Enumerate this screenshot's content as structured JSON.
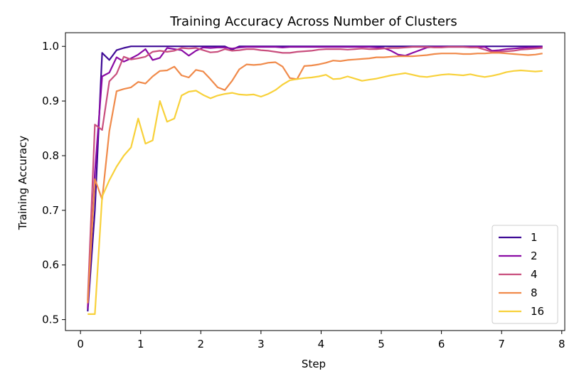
{
  "chart_data": {
    "type": "line",
    "title": "Training Accuracy Across Number of Clusters",
    "xlabel": "Step",
    "ylabel": "Training Accuracy",
    "xlim": [
      -0.25,
      8.05
    ],
    "ylim": [
      0.48,
      1.025
    ],
    "xticks": [
      0,
      1,
      2,
      3,
      4,
      5,
      6,
      7,
      8
    ],
    "xtick_labels": [
      "0",
      "1",
      "2",
      "3",
      "4",
      "5",
      "6",
      "7",
      "8"
    ],
    "yticks": [
      0.5,
      0.6,
      0.7,
      0.8,
      0.9,
      1.0
    ],
    "ytick_labels": [
      "0.5",
      "0.6",
      "0.7",
      "0.8",
      "0.9",
      "1.0"
    ],
    "grid": false,
    "legend_position": "bottom-right",
    "x": [
      0.12,
      0.24,
      0.36,
      0.48,
      0.6,
      0.72,
      0.84,
      0.96,
      1.08,
      1.2,
      1.32,
      1.44,
      1.56,
      1.68,
      1.8,
      1.92,
      2.04,
      2.16,
      2.28,
      2.4,
      2.52,
      2.64,
      2.76,
      2.88,
      3.0,
      3.12,
      3.24,
      3.36,
      3.48,
      3.6,
      3.72,
      3.84,
      3.96,
      4.08,
      4.2,
      4.32,
      4.44,
      4.56,
      4.68,
      4.8,
      4.92,
      5.04,
      5.16,
      5.28,
      5.4,
      5.52,
      5.64,
      5.76,
      5.88,
      6.0,
      6.12,
      6.24,
      6.36,
      6.48,
      6.6,
      6.72,
      6.84,
      6.96,
      7.08,
      7.2,
      7.32,
      7.44,
      7.56,
      7.68
    ],
    "series": [
      {
        "name": "1",
        "color": "#3e0a96",
        "values": [
          0.515,
          0.7,
          0.988,
          0.975,
          0.993,
          0.997,
          1.0,
          1.0,
          1.0,
          1.0,
          1.0,
          1.0,
          1.0,
          1.0,
          1.0,
          1.0,
          1.0,
          1.0,
          1.0,
          1.0,
          0.994,
          1.0,
          1.0,
          1.0,
          1.0,
          1.0,
          1.0,
          1.0,
          1.0,
          1.0,
          1.0,
          1.0,
          1.0,
          1.0,
          1.0,
          1.0,
          1.0,
          1.0,
          1.0,
          1.0,
          1.0,
          1.0,
          1.0,
          1.0,
          1.0,
          1.0,
          1.0,
          1.0,
          1.0,
          1.0,
          1.0,
          1.0,
          1.0,
          1.0,
          1.0,
          1.0,
          1.0,
          1.0,
          1.0,
          1.0,
          1.0,
          1.0,
          1.0,
          1.0
        ]
      },
      {
        "name": "2",
        "color": "#8a0ba4",
        "values": [
          0.52,
          0.77,
          0.945,
          0.952,
          0.98,
          0.972,
          0.978,
          0.985,
          0.995,
          0.975,
          0.979,
          0.997,
          0.995,
          0.993,
          0.983,
          0.992,
          0.998,
          0.997,
          0.998,
          0.998,
          0.996,
          0.998,
          0.999,
          0.999,
          0.999,
          0.999,
          0.999,
          0.998,
          0.999,
          0.999,
          0.999,
          0.999,
          0.999,
          0.999,
          0.999,
          0.999,
          0.999,
          0.999,
          0.999,
          0.999,
          0.998,
          0.997,
          0.992,
          0.985,
          0.983,
          0.988,
          0.993,
          0.998,
          0.999,
          0.999,
          0.999,
          0.999,
          0.999,
          0.999,
          0.999,
          0.999,
          0.992,
          0.993,
          0.995,
          0.996,
          0.997,
          0.998,
          0.998,
          0.999
        ]
      },
      {
        "name": "4",
        "color": "#c94f7e",
        "values": [
          0.535,
          0.857,
          0.847,
          0.936,
          0.95,
          0.981,
          0.976,
          0.978,
          0.981,
          0.99,
          0.992,
          0.99,
          0.992,
          0.997,
          0.996,
          0.997,
          0.993,
          0.989,
          0.99,
          0.995,
          0.992,
          0.993,
          0.995,
          0.995,
          0.993,
          0.992,
          0.99,
          0.988,
          0.988,
          0.99,
          0.991,
          0.992,
          0.994,
          0.995,
          0.995,
          0.995,
          0.994,
          0.995,
          0.996,
          0.995,
          0.995,
          0.996,
          0.997,
          0.997,
          0.998,
          0.999,
          0.999,
          0.999,
          0.998,
          0.998,
          0.999,
          0.999,
          0.999,
          0.998,
          0.998,
          0.994,
          0.99,
          0.99,
          0.991,
          0.992,
          0.994,
          0.995,
          0.996,
          0.997
        ]
      },
      {
        "name": "8",
        "color": "#f08a4a",
        "values": [
          0.53,
          0.757,
          0.72,
          0.845,
          0.918,
          0.922,
          0.925,
          0.935,
          0.932,
          0.945,
          0.955,
          0.956,
          0.963,
          0.947,
          0.943,
          0.957,
          0.954,
          0.94,
          0.925,
          0.92,
          0.937,
          0.958,
          0.967,
          0.966,
          0.967,
          0.97,
          0.971,
          0.963,
          0.942,
          0.94,
          0.964,
          0.965,
          0.967,
          0.97,
          0.974,
          0.973,
          0.975,
          0.976,
          0.977,
          0.978,
          0.98,
          0.98,
          0.981,
          0.982,
          0.982,
          0.982,
          0.983,
          0.984,
          0.986,
          0.987,
          0.987,
          0.987,
          0.986,
          0.986,
          0.987,
          0.987,
          0.988,
          0.988,
          0.987,
          0.986,
          0.985,
          0.984,
          0.985,
          0.987
        ]
      },
      {
        "name": "16",
        "color": "#f8d13a",
        "values": [
          0.51,
          0.51,
          0.725,
          0.755,
          0.78,
          0.8,
          0.815,
          0.868,
          0.822,
          0.828,
          0.9,
          0.862,
          0.868,
          0.91,
          0.917,
          0.919,
          0.911,
          0.905,
          0.91,
          0.913,
          0.915,
          0.912,
          0.911,
          0.912,
          0.908,
          0.913,
          0.92,
          0.93,
          0.938,
          0.94,
          0.942,
          0.943,
          0.945,
          0.948,
          0.94,
          0.941,
          0.945,
          0.941,
          0.937,
          0.939,
          0.941,
          0.944,
          0.947,
          0.949,
          0.951,
          0.948,
          0.945,
          0.944,
          0.946,
          0.948,
          0.949,
          0.948,
          0.947,
          0.949,
          0.946,
          0.944,
          0.946,
          0.949,
          0.953,
          0.955,
          0.956,
          0.955,
          0.954,
          0.955
        ]
      }
    ]
  }
}
